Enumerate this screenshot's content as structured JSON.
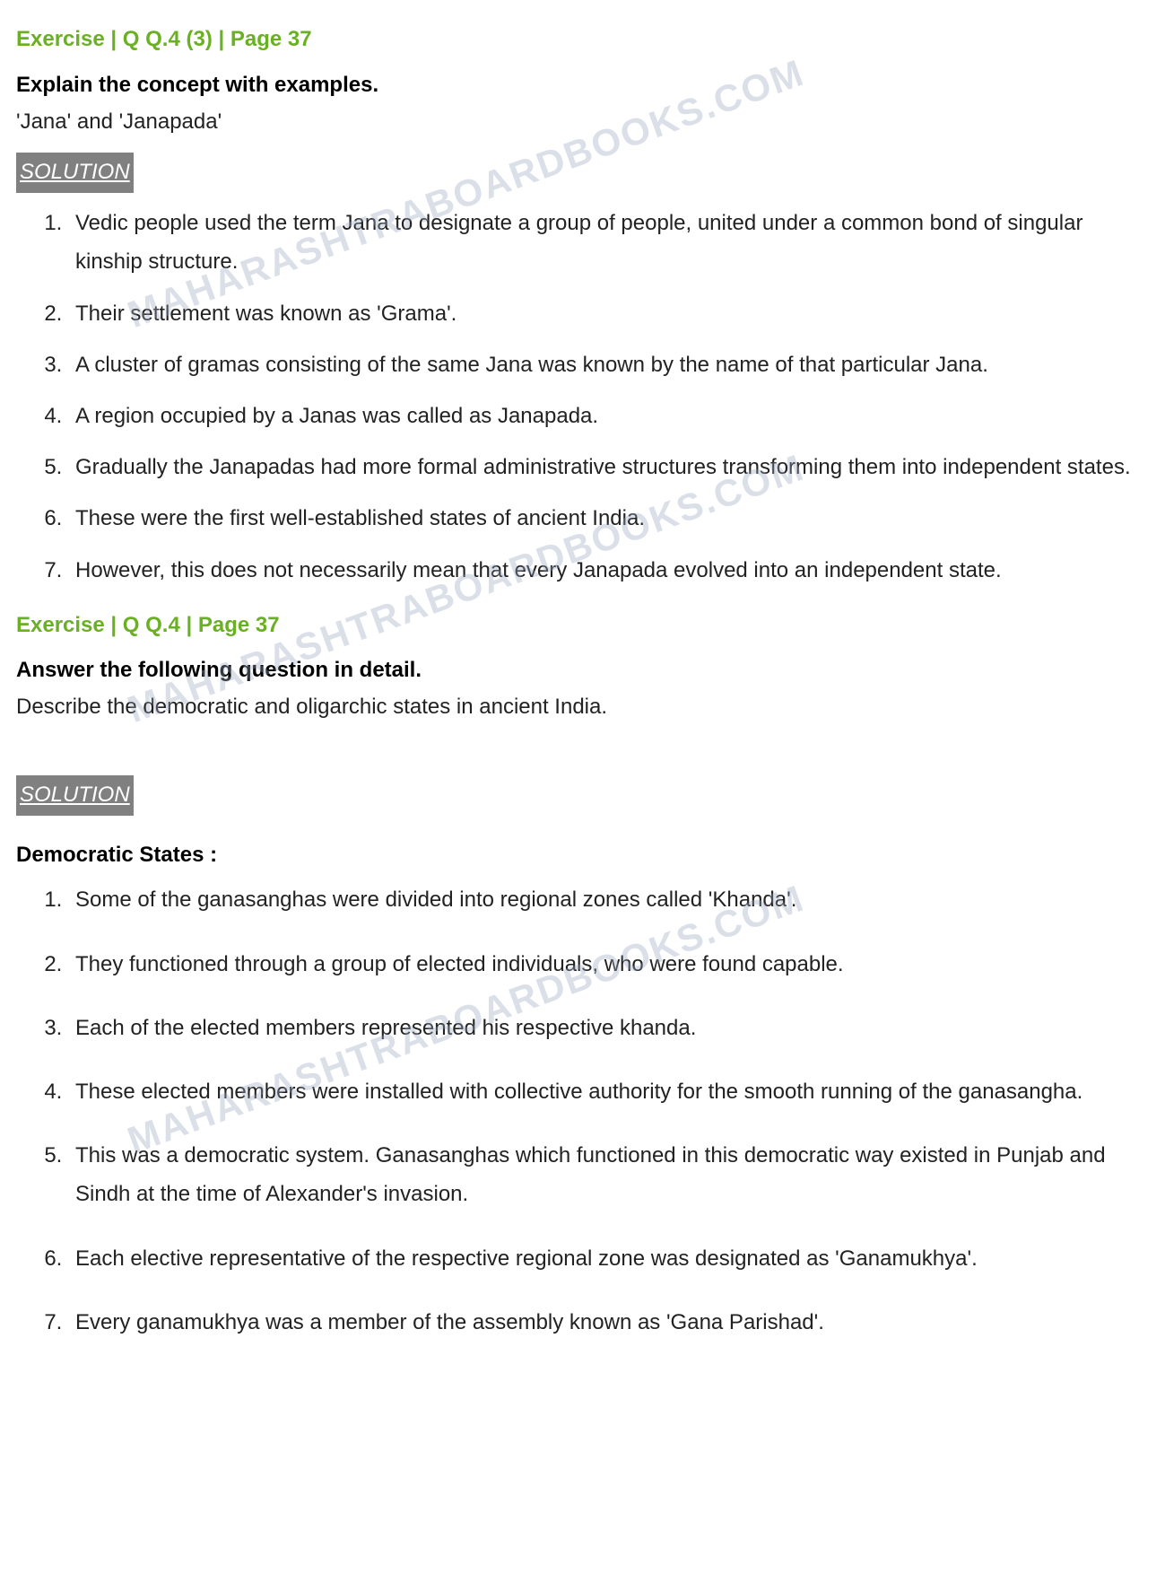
{
  "watermark": "MAHARASHTRABOARDBOOKS.COM",
  "section1": {
    "header": "Exercise | Q Q.4 (3) | Page 37",
    "question_bold": "Explain the concept with examples.",
    "question_sub": "'Jana' and 'Janapada'",
    "solution_label": "SOLUTION",
    "items": [
      "Vedic people used the term Jana to designate a group of people, united under a common bond of singular kinship structure.",
      "Their settlement was known as 'Grama'.",
      "A cluster of gramas consisting of the same Jana was known by the name of that particular Jana.",
      "A region occupied by a Janas was called as Janapada.",
      "Gradually the Janapadas had more formal administrative structures transforming them into independent states.",
      "These were the first well-established states of ancient India.",
      "However, this does not necessarily mean that every Janapada evolved into an independent state."
    ]
  },
  "section2": {
    "header": "Exercise | Q Q.4 | Page 37",
    "question_bold": "Answer the following question in detail.",
    "question_sub": "Describe the democratic and oligarchic states in ancient India.",
    "solution_label": "SOLUTION",
    "subheading": "Democratic States :",
    "items": [
      "Some of the ganasanghas were divided into regional zones called 'Khanda'.",
      "They functioned through a group of elected individuals, who were found capable.",
      "Each of the elected members  represented his respective khanda.",
      "These elected members were installed with collective authority for the smooth running of the ganasangha.",
      "This was a democratic system. Ganasanghas which functioned in this democratic way existed in Punjab and Sindh at the time of Alexander's invasion.",
      "Each elective representative of the respective regional zone was designated as 'Ganamukhya'.",
      "Every ganamukhya was a member of the assembly known as 'Gana Parishad'."
    ]
  }
}
